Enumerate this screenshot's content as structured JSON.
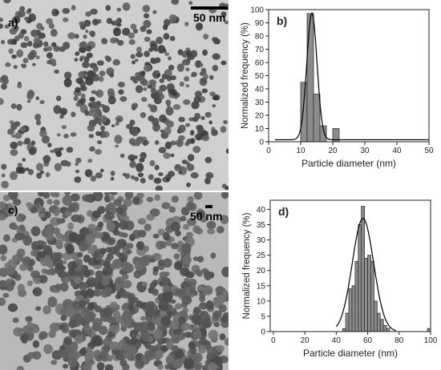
{
  "panels": {
    "a": {
      "label": "a)",
      "scale_bar": "50 nm"
    },
    "c": {
      "label": "c)",
      "scale_bar": "50 nm"
    }
  },
  "chart_data": [
    {
      "panel": "b)",
      "type": "bar",
      "xlabel": "Particle diameter (nm)",
      "ylabel": "Normalized frequency (%)",
      "xlim": [
        0,
        50
      ],
      "ylim": [
        0,
        100
      ],
      "xticks": [
        0,
        10,
        20,
        30,
        40,
        50
      ],
      "yticks": [
        0,
        10,
        20,
        30,
        40,
        50,
        60,
        70,
        80,
        90,
        100
      ],
      "bin_width": 2,
      "bins": [
        {
          "x": 11,
          "y": 45
        },
        {
          "x": 13,
          "y": 97
        },
        {
          "x": 15,
          "y": 36
        },
        {
          "x": 17,
          "y": 12
        },
        {
          "x": 19,
          "y": 0
        },
        {
          "x": 21,
          "y": 10
        }
      ],
      "fit": {
        "type": "gaussian",
        "mean": 13.5,
        "sigma": 1.6,
        "peak": 96,
        "baseline": 1.5,
        "range": [
          2,
          50
        ]
      }
    },
    {
      "panel": "d)",
      "type": "bar",
      "xlabel": "Particle diameter (nm)",
      "ylabel": "Normalized frequency (%)",
      "xlim": [
        -2,
        100
      ],
      "ylim": [
        0,
        43
      ],
      "xticks": [
        0,
        20,
        40,
        60,
        80,
        100
      ],
      "yticks": [
        0,
        5,
        10,
        15,
        20,
        25,
        30,
        35,
        40
      ],
      "bin_width": 2,
      "bins": [
        {
          "x": 45,
          "y": 1
        },
        {
          "x": 47,
          "y": 6
        },
        {
          "x": 49,
          "y": 14
        },
        {
          "x": 51,
          "y": 15
        },
        {
          "x": 53,
          "y": 23
        },
        {
          "x": 55,
          "y": 35
        },
        {
          "x": 57,
          "y": 41
        },
        {
          "x": 59,
          "y": 24
        },
        {
          "x": 61,
          "y": 25
        },
        {
          "x": 63,
          "y": 23
        },
        {
          "x": 65,
          "y": 10
        },
        {
          "x": 67,
          "y": 6
        },
        {
          "x": 69,
          "y": 4
        },
        {
          "x": 71,
          "y": 2
        },
        {
          "x": 73,
          "y": 1
        },
        {
          "x": 99,
          "y": 1
        }
      ],
      "fit": {
        "type": "gaussian",
        "mean": 57,
        "sigma": 6.8,
        "peak": 37,
        "baseline": 0,
        "range": [
          40,
          78
        ]
      }
    }
  ]
}
